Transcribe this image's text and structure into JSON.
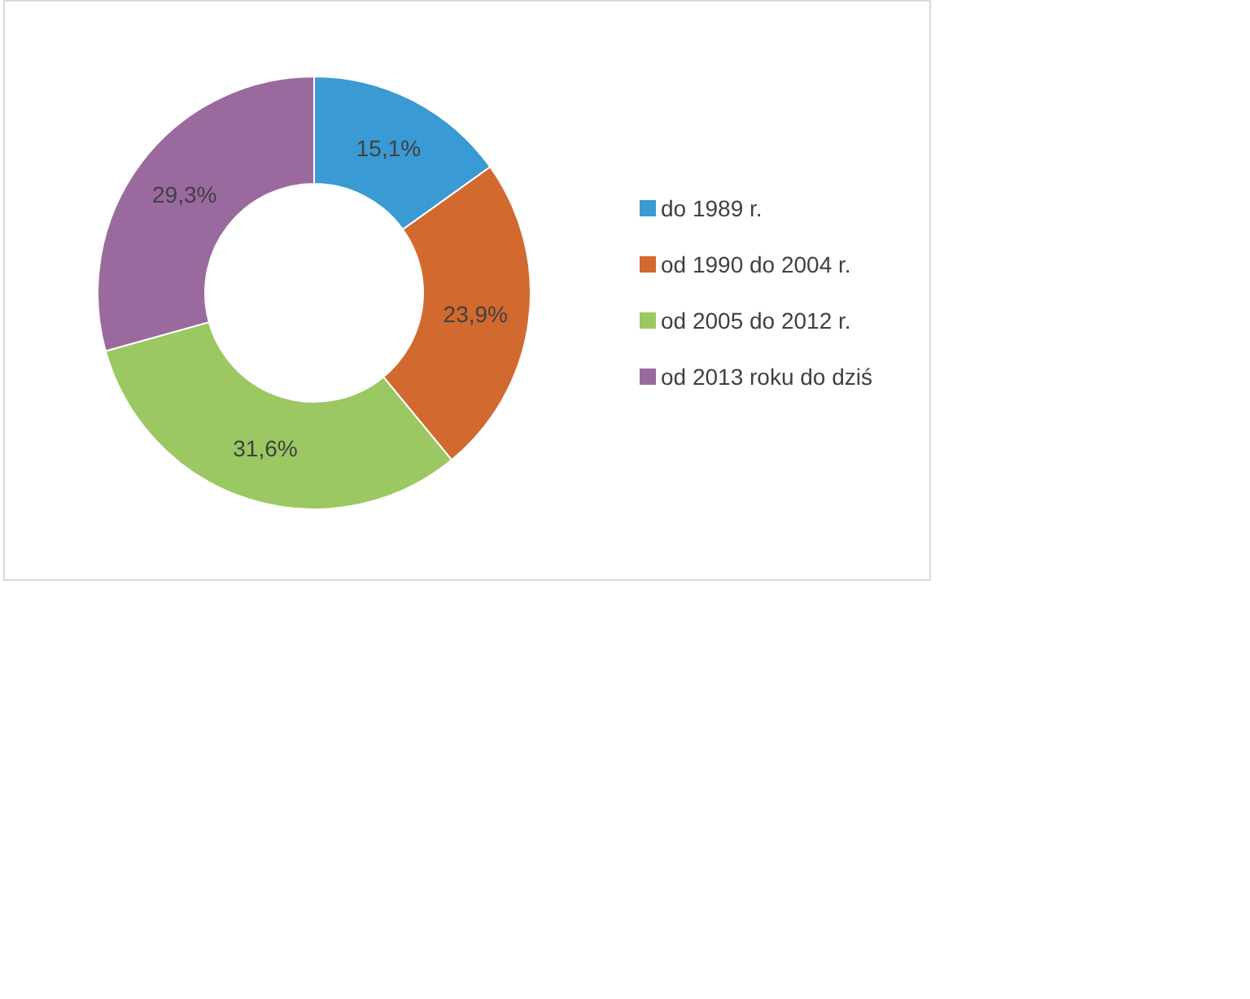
{
  "chart_data": {
    "type": "donut",
    "categories": [
      "do 1989 r.",
      "od 1990 do 2004 r.",
      "od 2005 do 2012 r.",
      "od 2013 roku do dziś"
    ],
    "values": [
      15.1,
      23.9,
      31.6,
      29.3
    ],
    "colors": [
      "#3a9ad4",
      "#d2692f",
      "#9bc862",
      "#9a6a9e"
    ],
    "value_labels": [
      "15,1%",
      "23,9%",
      "31,6%",
      "29,3%"
    ],
    "legend": "right"
  }
}
